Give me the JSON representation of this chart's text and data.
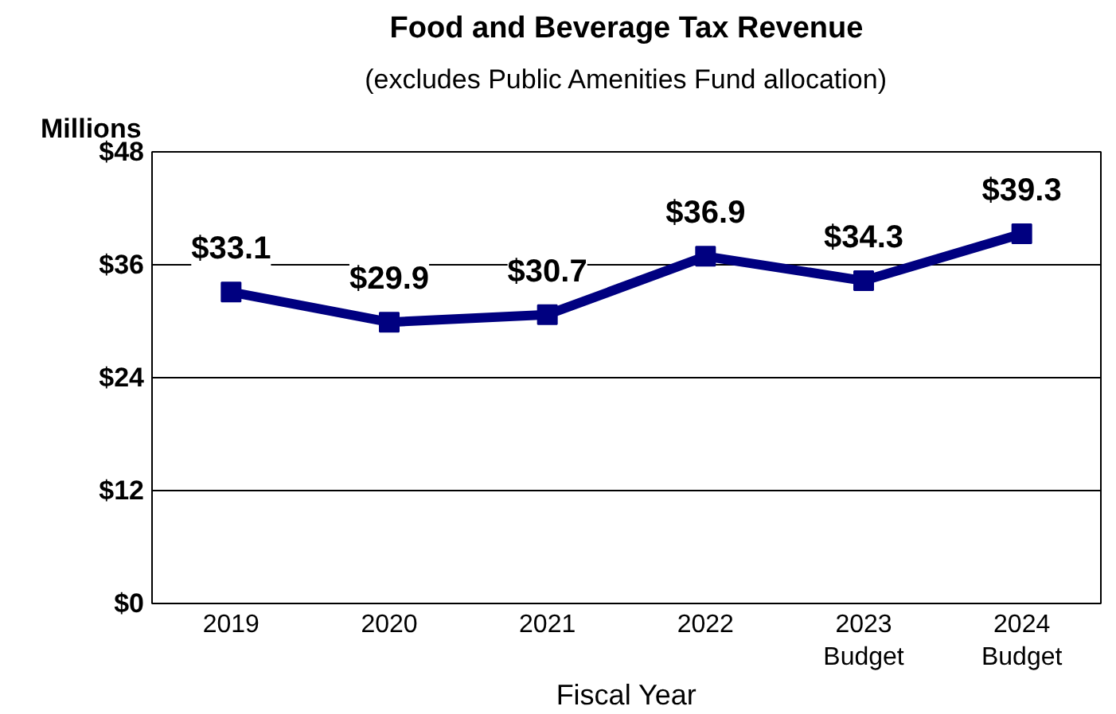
{
  "chart_data": {
    "type": "line",
    "title": "Food and Beverage Tax Revenue",
    "subtitle": "(excludes Public Amenities Fund allocation)",
    "ylabel": "Millions",
    "xlabel": "Fiscal Year",
    "categories": [
      "2019",
      "2020",
      "2021",
      "2022",
      "2023\nBudget",
      "2024\nBudget"
    ],
    "series": [
      {
        "color": "#000080",
        "values": [
          33.1,
          29.9,
          30.7,
          36.9,
          34.3,
          39.3
        ],
        "value_labels": [
          "$33.1",
          "$29.9",
          "$30.7",
          "$36.9",
          "$34.3",
          "$39.3"
        ]
      }
    ],
    "ylim": [
      0,
      48
    ],
    "yticks": [
      {
        "value": 0,
        "label": "$0"
      },
      {
        "value": 12,
        "label": "$12"
      },
      {
        "value": 24,
        "label": "$24"
      },
      {
        "value": 36,
        "label": "$36"
      },
      {
        "value": 48,
        "label": "$48"
      }
    ],
    "grid": "y",
    "legend": false,
    "marker": "square",
    "line_style": "solid"
  }
}
